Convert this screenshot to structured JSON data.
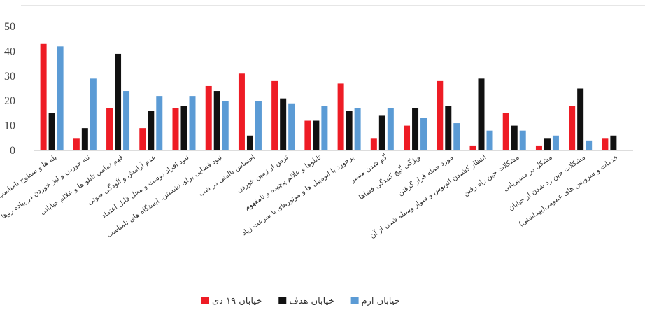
{
  "chart_data": {
    "type": "bar",
    "categories": [
      "پله ها و سطوح نامناسب",
      "تنه خوردن و لیز خوردن در پیاده روها",
      "فهم تمامی تابلو ها و علائم خیابانی",
      "عدم آرامش و آلودگی صوتی",
      "نبود افراد دوست و محل قابل اعتماد",
      "نبود فضایی برای نشستن، ایستگاه های نامناسب",
      "احساس ناامنی در شب",
      "ترس از زمین خوردن",
      "تابلوها و علائم پیچیده و نامفهوم",
      "برخورد با اتومبیل ها و موتورهای با سرعت زیاد",
      "گم شدن مسیر",
      "ویژگی گیج کنندگی فضاها",
      "مورد حمله قرار گرفتن",
      "انتظار کشیدن اتوبوس و سوار وسیله شدن از آن",
      "مشکلات حین راه رفتن",
      "مشکل در مسیریابی",
      "مشکلات حین رد شدن از خیابان",
      "خدمات و سرویس های عمومی(بهداشتی)"
    ],
    "series": [
      {
        "name": "خیابان ۱۹ دی",
        "color": "#ee1c25",
        "values": [
          43,
          5,
          17,
          9,
          17,
          26,
          31,
          28,
          12,
          27,
          5,
          10,
          28,
          2,
          15,
          2,
          18,
          5
        ]
      },
      {
        "name": "خیابان هدف",
        "color": "#111111",
        "values": [
          15,
          9,
          39,
          16,
          18,
          24,
          6,
          21,
          12,
          16,
          14,
          17,
          18,
          29,
          10,
          5,
          25,
          6
        ]
      },
      {
        "name": "خیابان ارم",
        "color": "#5b9bd5",
        "values": [
          42,
          29,
          24,
          22,
          22,
          20,
          20,
          19,
          18,
          17,
          17,
          13,
          11,
          8,
          8,
          6,
          4,
          0
        ]
      }
    ],
    "ylim": [
      0,
      50
    ],
    "yticks": [
      0,
      10,
      20,
      30,
      40,
      50
    ],
    "grid": false
  }
}
